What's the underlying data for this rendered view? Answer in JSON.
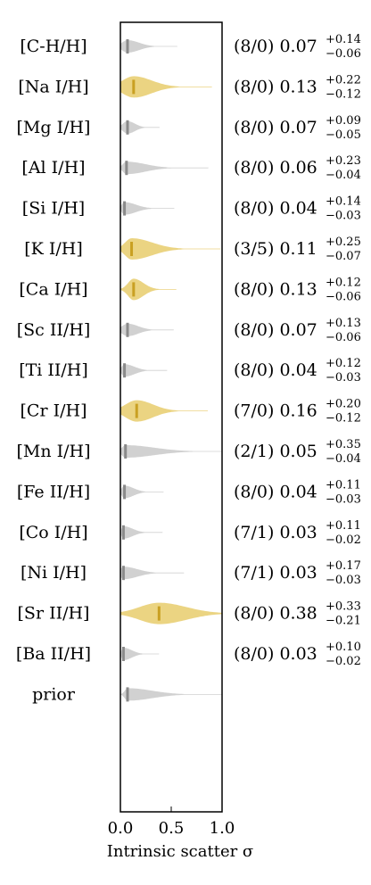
{
  "chart_data": {
    "type": "violin",
    "xlabel": "Intrinsic scatter σ",
    "xlim": [
      0.0,
      1.0
    ],
    "xticks": [
      {
        "value": 0.0,
        "label": "0.0"
      },
      {
        "value": 0.5,
        "label": "0.5"
      },
      {
        "value": 1.0,
        "label": "1.0"
      }
    ],
    "highlight_color": "#ddb72e",
    "neutral_color": "#9a9a9a",
    "rows": [
      {
        "label": "[C-H/H]",
        "highlight": false,
        "median": 0.07,
        "plus": 0.14,
        "minus": 0.06,
        "count": "(8/0)",
        "value_text": "0.07",
        "plus_text": "+0.14",
        "minus_text": "−0.06"
      },
      {
        "label": "[Na I/H]",
        "highlight": true,
        "median": 0.13,
        "plus": 0.22,
        "minus": 0.12,
        "count": "(8/0)",
        "value_text": "0.13",
        "plus_text": "+0.22",
        "minus_text": "−0.12"
      },
      {
        "label": "[Mg I/H]",
        "highlight": false,
        "median": 0.07,
        "plus": 0.09,
        "minus": 0.05,
        "count": "(8/0)",
        "value_text": "0.07",
        "plus_text": "+0.09",
        "minus_text": "−0.05"
      },
      {
        "label": "[Al I/H]",
        "highlight": false,
        "median": 0.06,
        "plus": 0.23,
        "minus": 0.04,
        "count": "(8/0)",
        "value_text": "0.06",
        "plus_text": "+0.23",
        "minus_text": "−0.04"
      },
      {
        "label": "[Si I/H]",
        "highlight": false,
        "median": 0.04,
        "plus": 0.14,
        "minus": 0.03,
        "count": "(8/0)",
        "value_text": "0.04",
        "plus_text": "+0.14",
        "minus_text": "−0.03"
      },
      {
        "label": "[K I/H]",
        "highlight": true,
        "median": 0.11,
        "plus": 0.25,
        "minus": 0.07,
        "count": "(3/5)",
        "value_text": "0.11",
        "plus_text": "+0.25",
        "minus_text": "−0.07"
      },
      {
        "label": "[Ca I/H]",
        "highlight": true,
        "median": 0.13,
        "plus": 0.12,
        "minus": 0.06,
        "count": "(8/0)",
        "value_text": "0.13",
        "plus_text": "+0.12",
        "minus_text": "−0.06"
      },
      {
        "label": "[Sc II/H]",
        "highlight": false,
        "median": 0.07,
        "plus": 0.13,
        "minus": 0.06,
        "count": "(8/0)",
        "value_text": "0.07",
        "plus_text": "+0.13",
        "minus_text": "−0.06"
      },
      {
        "label": "[Ti II/H]",
        "highlight": false,
        "median": 0.04,
        "plus": 0.12,
        "minus": 0.03,
        "count": "(8/0)",
        "value_text": "0.04",
        "plus_text": "+0.12",
        "minus_text": "−0.03"
      },
      {
        "label": "[Cr I/H]",
        "highlight": true,
        "median": 0.16,
        "plus": 0.2,
        "minus": 0.12,
        "count": "(7/0)",
        "value_text": "0.16",
        "plus_text": "+0.20",
        "minus_text": "−0.12"
      },
      {
        "label": "[Mn I/H]",
        "highlight": false,
        "median": 0.05,
        "plus": 0.35,
        "minus": 0.04,
        "count": "(2/1)",
        "value_text": "0.05",
        "plus_text": "+0.35",
        "minus_text": "−0.04"
      },
      {
        "label": "[Fe II/H]",
        "highlight": false,
        "median": 0.04,
        "plus": 0.11,
        "minus": 0.03,
        "count": "(8/0)",
        "value_text": "0.04",
        "plus_text": "+0.11",
        "minus_text": "−0.03"
      },
      {
        "label": "[Co I/H]",
        "highlight": false,
        "median": 0.03,
        "plus": 0.11,
        "minus": 0.02,
        "count": "(7/1)",
        "value_text": "0.03",
        "plus_text": "+0.11",
        "minus_text": "−0.02"
      },
      {
        "label": "[Ni I/H]",
        "highlight": false,
        "median": 0.03,
        "plus": 0.17,
        "minus": 0.03,
        "count": "(7/1)",
        "value_text": "0.03",
        "plus_text": "+0.17",
        "minus_text": "−0.03"
      },
      {
        "label": "[Sr II/H]",
        "highlight": true,
        "median": 0.38,
        "plus": 0.33,
        "minus": 0.21,
        "count": "(8/0)",
        "value_text": "0.38",
        "plus_text": "+0.33",
        "minus_text": "−0.21"
      },
      {
        "label": "[Ba II/H]",
        "highlight": false,
        "median": 0.03,
        "plus": 0.1,
        "minus": 0.02,
        "count": "(8/0)",
        "value_text": "0.03",
        "plus_text": "+0.10",
        "minus_text": "−0.02"
      },
      {
        "label": "prior",
        "highlight": false,
        "median": 0.07,
        "plus": null,
        "minus": null,
        "count": "",
        "value_text": "",
        "plus_text": "",
        "minus_text": ""
      }
    ]
  }
}
